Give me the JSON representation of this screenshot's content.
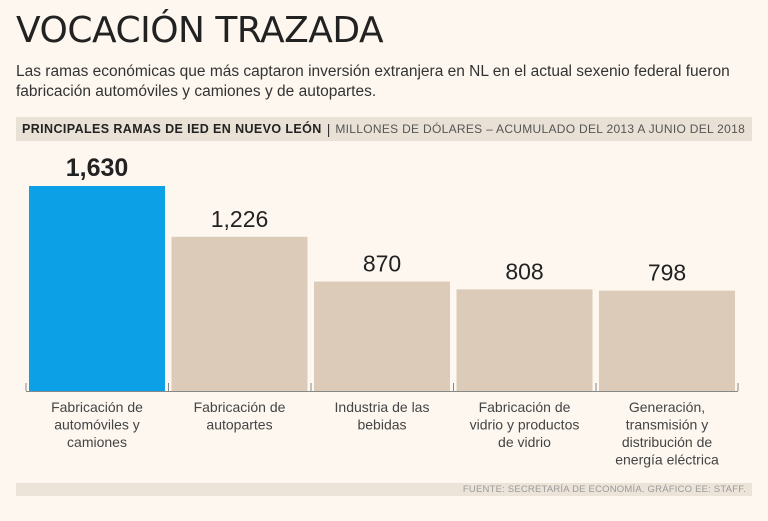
{
  "header": {
    "title": "VOCACIÓN TRAZADA",
    "subtitle": "Las ramas económicas que más captaron inversión extranjera en NL en el actual sexenio federal fueron fabricación automóviles y camiones y de autopartes."
  },
  "band": {
    "bold": "PRINCIPALES RAMAS DE IED EN NUEVO LEÓN",
    "sep": "|",
    "light": "MILLONES DE DÓLARES – ACUMULADO DEL 2013 A JUNIO DEL 2018"
  },
  "chart_data": {
    "type": "bar",
    "title": "PRINCIPALES RAMAS DE IED EN NUEVO LEÓN",
    "ylabel": "MILLONES DE DÓLARES",
    "ylim": [
      0,
      1630
    ],
    "categories": [
      [
        "Fabricación de",
        "automóviles y",
        "camiones"
      ],
      [
        "Fabricación de",
        "autopartes"
      ],
      [
        "Industria de las",
        "bebidas"
      ],
      [
        "Fabricación de",
        "vidrio y productos",
        "de vidrio"
      ],
      [
        "Generación,",
        "transmisión y",
        "distribución de",
        "energía eléctrica"
      ]
    ],
    "values": [
      1630,
      1226,
      870,
      808,
      798
    ],
    "value_labels": [
      "1,630",
      "1,226",
      "870",
      "808",
      "798"
    ],
    "highlight_index": 0,
    "colors": {
      "highlight": "#0ca0e6",
      "default": "#dccbb9",
      "axis": "#888888"
    }
  },
  "footer": {
    "source": "FUENTE: SECRETARÍA DE ECONOMÍA. GRÁFICO EE: STAFF."
  }
}
